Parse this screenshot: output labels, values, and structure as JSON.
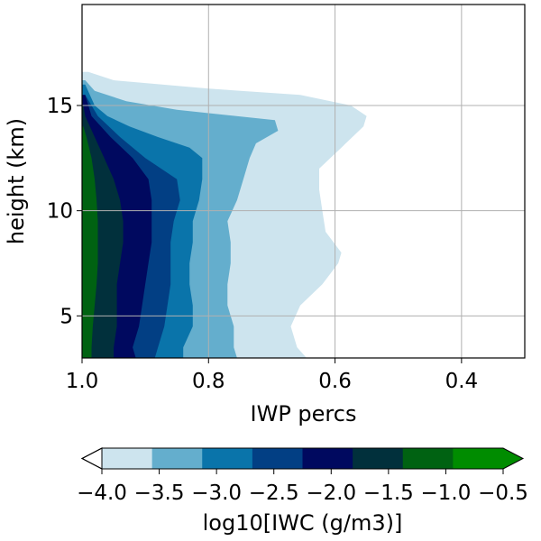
{
  "chart_data": {
    "type": "filled-contour",
    "xlabel": "IWP percs",
    "ylabel": "height (km)",
    "xlim": [
      1.0,
      0.3
    ],
    "ylim": [
      3.0,
      19.8
    ],
    "xticks": [
      {
        "value": 1.0,
        "label": "1.0"
      },
      {
        "value": 0.8,
        "label": "0.8"
      },
      {
        "value": 0.6,
        "label": "0.6"
      },
      {
        "value": 0.4,
        "label": "0.4"
      }
    ],
    "yticks": [
      {
        "value": 5,
        "label": "5"
      },
      {
        "value": 10,
        "label": "10"
      },
      {
        "value": 15,
        "label": "15"
      }
    ],
    "grid": true,
    "levels": [
      -4.0,
      -3.5,
      -3.0,
      -2.5,
      -2.0,
      -1.5,
      -1.0,
      -0.5
    ],
    "level_colors": [
      "#cde4ee",
      "#64aecd",
      "#0a74aa",
      "#023f84",
      "#00095f",
      "#01303c",
      "#006212",
      "#008c00"
    ],
    "colorbar": {
      "label": "log10[IWC (g/m3)]",
      "ticks": [
        "−4.0",
        "−3.5",
        "−3.0",
        "−2.5",
        "−2.0",
        "−1.5",
        "−1.0",
        "−0.5"
      ],
      "extend": "both",
      "under_color": "#ffffff",
      "over_color": "#008c00"
    },
    "contours": [
      {
        "level_min": -4.0,
        "right_edge": [
          [
            3.0,
            0.645
          ],
          [
            3.5,
            0.66
          ],
          [
            4.5,
            0.67
          ],
          [
            5.5,
            0.655
          ],
          [
            6.5,
            0.62
          ],
          [
            7.5,
            0.595
          ],
          [
            8.0,
            0.59
          ],
          [
            9.0,
            0.615
          ],
          [
            10.0,
            0.62
          ],
          [
            11.0,
            0.625
          ],
          [
            12.0,
            0.625
          ],
          [
            13.0,
            0.59
          ],
          [
            14.0,
            0.555
          ],
          [
            14.5,
            0.55
          ],
          [
            15.0,
            0.575
          ],
          [
            15.5,
            0.655
          ],
          [
            15.8,
            0.8
          ],
          [
            16.2,
            0.95
          ],
          [
            16.6,
            0.99
          ]
        ]
      },
      {
        "level_min": -3.5,
        "right_edge": [
          [
            3.0,
            0.755
          ],
          [
            3.5,
            0.76
          ],
          [
            4.5,
            0.76
          ],
          [
            5.5,
            0.77
          ],
          [
            6.5,
            0.77
          ],
          [
            7.5,
            0.765
          ],
          [
            8.5,
            0.765
          ],
          [
            9.5,
            0.77
          ],
          [
            10.5,
            0.755
          ],
          [
            11.5,
            0.745
          ],
          [
            12.5,
            0.735
          ],
          [
            13.2,
            0.725
          ],
          [
            13.8,
            0.69
          ],
          [
            14.3,
            0.695
          ],
          [
            14.8,
            0.85
          ],
          [
            15.2,
            0.93
          ],
          [
            15.7,
            0.98
          ],
          [
            16.2,
            0.995
          ]
        ]
      },
      {
        "level_min": -3.0,
        "right_edge": [
          [
            3.0,
            0.84
          ],
          [
            3.5,
            0.84
          ],
          [
            4.5,
            0.825
          ],
          [
            5.5,
            0.825
          ],
          [
            6.5,
            0.83
          ],
          [
            7.5,
            0.83
          ],
          [
            8.5,
            0.825
          ],
          [
            9.5,
            0.825
          ],
          [
            10.5,
            0.815
          ],
          [
            11.5,
            0.81
          ],
          [
            12.5,
            0.81
          ],
          [
            13.0,
            0.83
          ],
          [
            13.5,
            0.88
          ],
          [
            14.0,
            0.925
          ],
          [
            14.5,
            0.96
          ],
          [
            15.0,
            0.98
          ],
          [
            16.0,
            0.995
          ]
        ]
      },
      {
        "level_min": -2.5,
        "right_edge": [
          [
            3.0,
            0.885
          ],
          [
            3.5,
            0.88
          ],
          [
            4.5,
            0.87
          ],
          [
            5.5,
            0.865
          ],
          [
            6.5,
            0.86
          ],
          [
            7.5,
            0.86
          ],
          [
            8.5,
            0.86
          ],
          [
            9.5,
            0.855
          ],
          [
            10.5,
            0.845
          ],
          [
            11.5,
            0.85
          ],
          [
            12.5,
            0.9
          ],
          [
            13.5,
            0.94
          ],
          [
            14.5,
            0.975
          ],
          [
            15.5,
            0.995
          ]
        ]
      },
      {
        "level_min": -2.0,
        "right_edge": [
          [
            3.0,
            0.915
          ],
          [
            3.5,
            0.92
          ],
          [
            4.5,
            0.91
          ],
          [
            5.5,
            0.905
          ],
          [
            6.5,
            0.9
          ],
          [
            7.5,
            0.895
          ],
          [
            8.5,
            0.89
          ],
          [
            9.5,
            0.89
          ],
          [
            10.5,
            0.89
          ],
          [
            11.5,
            0.895
          ],
          [
            12.5,
            0.92
          ],
          [
            13.5,
            0.955
          ],
          [
            14.5,
            0.985
          ],
          [
            15.5,
            0.995
          ]
        ]
      },
      {
        "level_min": -1.5,
        "right_edge": [
          [
            3.0,
            0.95
          ],
          [
            3.5,
            0.95
          ],
          [
            4.5,
            0.945
          ],
          [
            5.5,
            0.945
          ],
          [
            6.5,
            0.945
          ],
          [
            7.5,
            0.94
          ],
          [
            8.5,
            0.935
          ],
          [
            9.5,
            0.935
          ],
          [
            10.5,
            0.94
          ],
          [
            11.5,
            0.95
          ],
          [
            12.5,
            0.965
          ],
          [
            13.5,
            0.98
          ],
          [
            14.5,
            0.995
          ],
          [
            15.0,
            0.998
          ]
        ]
      },
      {
        "level_min": -1.0,
        "right_edge": [
          [
            3.0,
            0.985
          ],
          [
            3.5,
            0.985
          ],
          [
            4.5,
            0.983
          ],
          [
            5.5,
            0.98
          ],
          [
            6.5,
            0.977
          ],
          [
            7.5,
            0.975
          ],
          [
            8.5,
            0.975
          ],
          [
            9.5,
            0.975
          ],
          [
            10.5,
            0.977
          ],
          [
            11.5,
            0.98
          ],
          [
            12.5,
            0.985
          ],
          [
            13.5,
            0.993
          ],
          [
            14.0,
            0.998
          ]
        ]
      }
    ]
  }
}
